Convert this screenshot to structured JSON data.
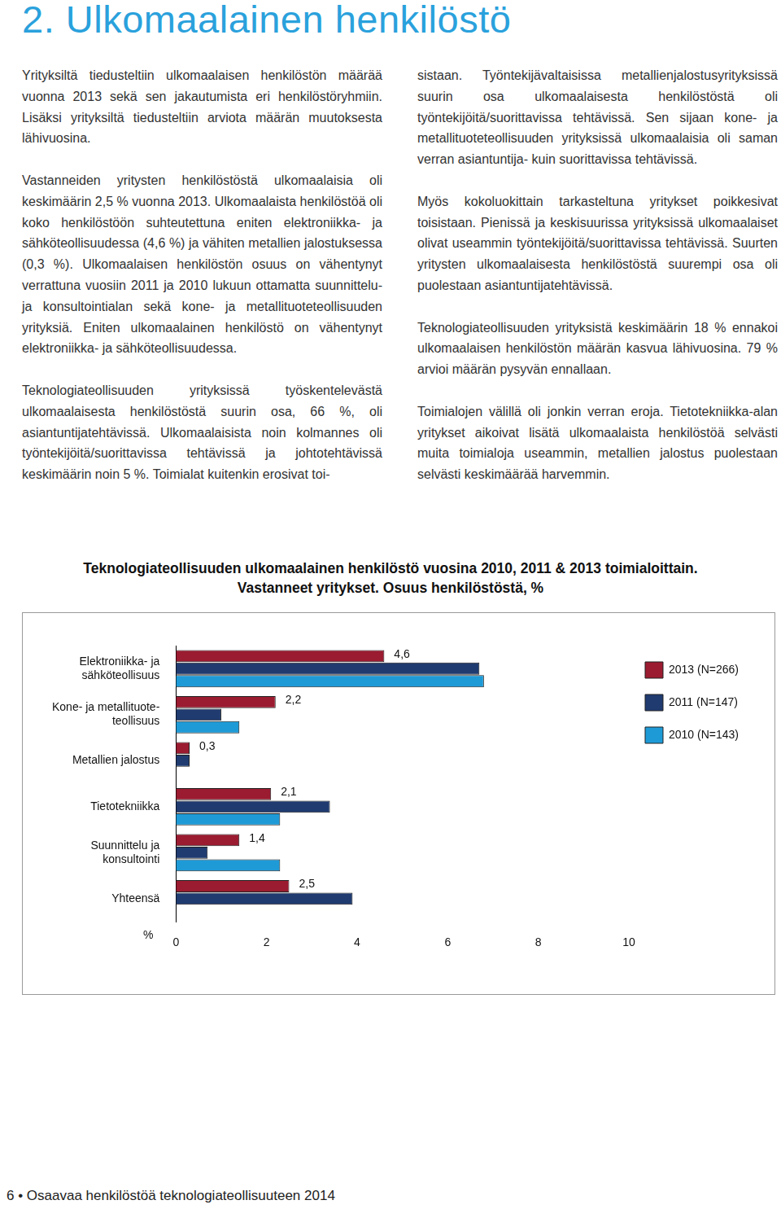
{
  "header": {
    "title": "2. Ulkomaalainen henkilöstö"
  },
  "columns": [
    [
      "Yrityksiltä tiedusteltiin ulkomaalaisen henkilöstön määrää vuonna 2013 sekä sen jakautumista eri henkilöstöryhmiin. Lisäksi yrityksiltä tiedusteltiin arviota määrän muutoksesta lähivuosina.",
      "Vastanneiden yritysten henkilöstöstä ulkomaalaisia oli keskimäärin 2,5 % vuonna 2013. Ulkomaalaista henkilöstöä oli koko henkilöstöön suhteutettuna eniten elektroniikka- ja sähköteollisuudessa (4,6 %) ja vähiten metallien jalostuksessa (0,3 %). Ulkomaalaisen henkilöstön osuus on vähentynyt verrattuna vuosiin 2011 ja 2010 lukuun ottamatta suunnittelu- ja konsultointialan sekä kone- ja metallituoteteollisuuden yrityksiä. Eniten ulkomaalainen henkilöstö on vähentynyt elektroniikka- ja sähköteollisuudessa.",
      "Teknologiateollisuuden yrityksissä työskentelevästä ulkomaalaisesta henkilöstöstä suurin osa, 66 %, oli asiantuntijatehtävissä. Ulkomaalaisista noin kolmannes oli työntekijöitä/suorittavissa tehtävissä ja johtotehtävissä keskimäärin noin 5 %. Toimialat kuitenkin erosivat toi-"
    ],
    [
      "sistaan. Työntekijävaltaisissa metallienjalostusyrityksissä suurin osa ulkomaalaisesta henkilöstöstä oli työntekijöitä/suorittavissa tehtävissä. Sen sijaan kone- ja metallituoteteollisuuden yrityksissä ulkomaalaisia oli saman verran asiantuntija- kuin suorittavissa tehtävissä.",
      "Myös kokoluokittain tarkasteltuna yritykset poikkesivat toisistaan. Pienissä ja keskisuurissa yrityksissä ulkomaalaiset olivat useammin työntekijöitä/suorittavissa tehtävissä. Suurten yritysten ulkomaalaisesta henkilöstöstä suurempi osa oli puolestaan asiantuntijatehtävissä.",
      "Teknologiateollisuuden yrityksistä keskimäärin 18 % ennakoi ulkomaalaisen henkilöstön määrän kasvua lähivuosina. 79 % arvioi määrän pysyvän ennallaan.",
      "Toimialojen välillä oli jonkin verran eroja. Tietotekniikka-alan yritykset aikoivat lisätä ulkomaalaista henkilöstöä selvästi muita toimialoja useammin, metallien jalostus puolestaan selvästi keskimäärää harvemmin."
    ]
  ],
  "chart_data": {
    "type": "bar",
    "orientation": "horizontal",
    "title": "Teknologiateollisuuden ulkomaalainen henkilöstö vuosina 2010, 2011 & 2013 toimialoittain.",
    "subtitle": "Vastanneet yritykset. Osuus henkilöstöstä, %",
    "xlabel": "%",
    "categories": [
      "Elektroniikka- ja\nsähköteollisuus",
      "Kone- ja metallituote-\nteollisuus",
      "Metallien jalostus",
      "Tietotekniikka",
      "Suunnittelu ja\nkonsultointi",
      "Yhteensä"
    ],
    "series": [
      {
        "name": "2013 (N=266)",
        "color": "#9b1b30",
        "values": [
          4.6,
          2.2,
          0.3,
          2.1,
          1.4,
          2.5
        ],
        "data_labels": true,
        "value_labels": [
          "4,6",
          "2,2",
          "0,3",
          "2,1",
          "1,4",
          "2,5"
        ]
      },
      {
        "name": "2011 (N=147)",
        "color": "#1f3b70",
        "values": [
          6.7,
          1.0,
          0.3,
          3.4,
          0.7,
          3.9
        ]
      },
      {
        "name": "2010 (N=143)",
        "color": "#1e9bd7",
        "values": [
          6.8,
          1.4,
          null,
          2.3,
          2.3,
          null
        ]
      }
    ],
    "xlim": [
      0,
      10
    ],
    "xticks": [
      0,
      2,
      4,
      6,
      8,
      10
    ],
    "grid": false,
    "legend": "right"
  },
  "footer": {
    "text": "6 • Osaavaa henkilöstöä teknologiateollisuuteen 2014"
  }
}
